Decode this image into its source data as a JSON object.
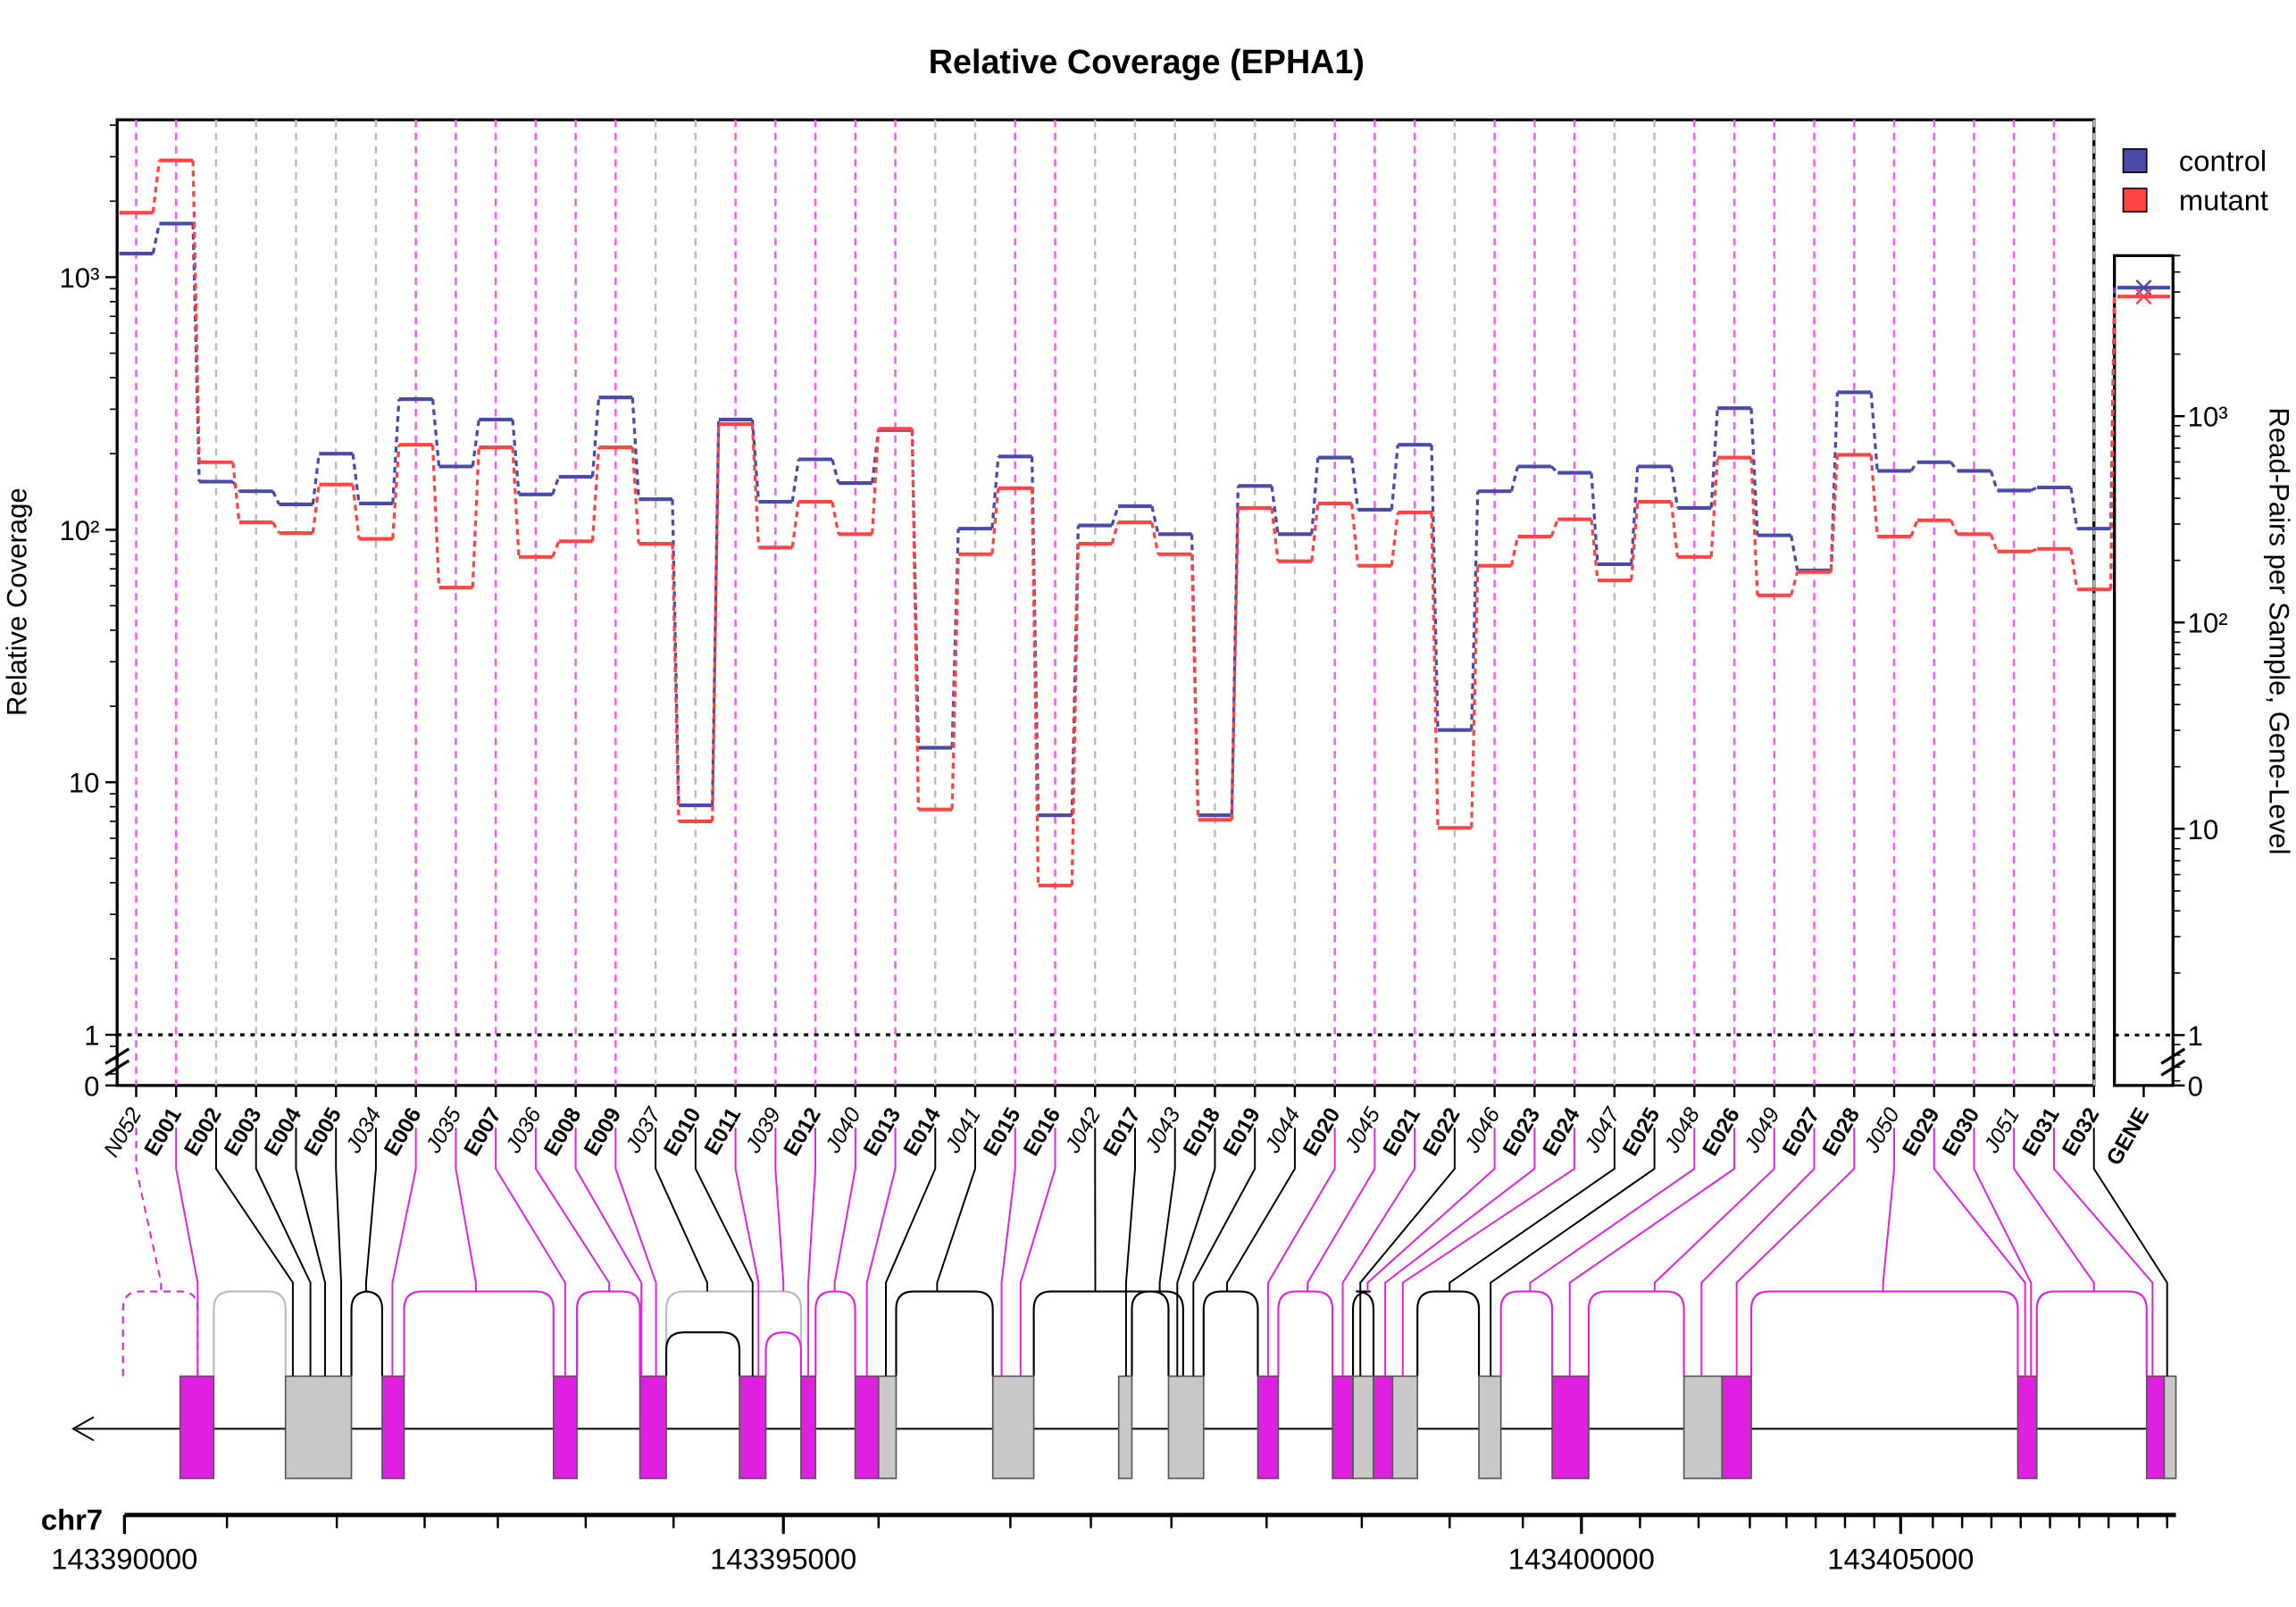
{
  "chart_data": {
    "type": "step",
    "title": "Relative Coverage (EPHA1)",
    "y_label": "Relative Coverage",
    "y2_label": "Read-Pairs per Sample, Gene-Level",
    "log_scale": true,
    "axis_break": true,
    "reference_line": 1,
    "legend": "top-right",
    "categories": [
      "N052",
      "E001",
      "E002",
      "E003",
      "E004",
      "E005",
      "J034",
      "E006",
      "J035",
      "E007",
      "J036",
      "E008",
      "E009",
      "J037",
      "E010",
      "E011",
      "J039",
      "E012",
      "J040",
      "E013",
      "E014",
      "J041",
      "E015",
      "E016",
      "J042",
      "E017",
      "J043",
      "E018",
      "E019",
      "J044",
      "E020",
      "J045",
      "E021",
      "E022",
      "J046",
      "E023",
      "E024",
      "J047",
      "E025",
      "J048",
      "E026",
      "J049",
      "E027",
      "E028",
      "J050",
      "E029",
      "E030",
      "J051",
      "E031",
      "E032"
    ],
    "significant": [
      true,
      true,
      false,
      false,
      false,
      false,
      false,
      true,
      true,
      true,
      true,
      true,
      true,
      false,
      false,
      true,
      true,
      true,
      true,
      true,
      false,
      false,
      true,
      true,
      false,
      false,
      false,
      false,
      false,
      false,
      true,
      true,
      true,
      false,
      true,
      true,
      true,
      false,
      false,
      true,
      true,
      true,
      true,
      true,
      true,
      true,
      true,
      true,
      true,
      false
    ],
    "significant_color": "#ff55ff",
    "guide_color": "#bbbbbb",
    "gene_label": "GENE",
    "series": [
      {
        "name": "control",
        "color": "#4a4aa8",
        "values": [
          1240,
          1630,
          155,
          142,
          126,
          200,
          127,
          329,
          178,
          273,
          138,
          162,
          334,
          132,
          8.1,
          273,
          129,
          190,
          153,
          248,
          13.7,
          101,
          195,
          7.4,
          104,
          124,
          96,
          7.4,
          149,
          96,
          193,
          120,
          217,
          16.1,
          142,
          178,
          168,
          73,
          178,
          122,
          303,
          95,
          69,
          350,
          171,
          185,
          171,
          143,
          147,
          101
        ],
        "gene_value": 4200
      },
      {
        "name": "mutant",
        "color": "#ff4444",
        "values": [
          1800,
          2900,
          185,
          107,
          97,
          151,
          92,
          217,
          59,
          212,
          78,
          90,
          212,
          88,
          7.0,
          262,
          85,
          129,
          96,
          251,
          7.8,
          80,
          146,
          3.9,
          88,
          107,
          80,
          7.1,
          122,
          75,
          127,
          72,
          117,
          6.6,
          72,
          94,
          110,
          63,
          129,
          78,
          193,
          55,
          68,
          198,
          94,
          109,
          96,
          82,
          84,
          58
        ],
        "gene_value": 3800
      }
    ],
    "ylim": [
      0.63,
      4200
    ],
    "yticks": [
      0,
      1,
      10,
      {
        "value": 100,
        "label": "10²"
      },
      {
        "value": 1000,
        "label": "10³"
      }
    ],
    "y2lim": [
      0.57,
      6000
    ],
    "y2ticks": [
      0,
      1,
      10,
      {
        "value": 100,
        "label": "10²"
      },
      {
        "value": 1000,
        "label": "10³"
      }
    ],
    "genome_axis": {
      "chrom": "chr7",
      "ticks": [
        {
          "value": 143390000,
          "label": "143390000"
        },
        {
          "value": 143395000,
          "label": "143395000"
        },
        {
          "value": 143400000,
          "label": "143400000"
        },
        {
          "value": 143405000,
          "label": "143405000"
        }
      ]
    }
  }
}
